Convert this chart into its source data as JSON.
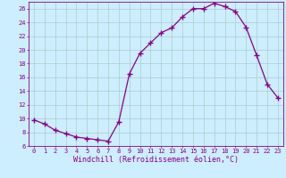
{
  "x": [
    0,
    1,
    2,
    3,
    4,
    5,
    6,
    7,
    8,
    9,
    10,
    11,
    12,
    13,
    14,
    15,
    16,
    17,
    18,
    19,
    20,
    21,
    22,
    23
  ],
  "y": [
    9.8,
    9.2,
    8.3,
    7.8,
    7.3,
    7.1,
    6.9,
    6.7,
    9.5,
    16.5,
    19.5,
    21.0,
    22.5,
    23.2,
    24.8,
    26.0,
    26.0,
    26.8,
    26.3,
    25.6,
    23.3,
    19.2,
    15.0,
    13.0
  ],
  "line_color": "#880088",
  "marker": "+",
  "marker_size": 4,
  "marker_lw": 1.0,
  "bg_color": "#cceeff",
  "grid_color": "#aacccc",
  "xlabel": "Windchill (Refroidissement éolien,°C)",
  "ylim": [
    6,
    27
  ],
  "xlim_left": -0.5,
  "xlim_right": 23.5,
  "yticks": [
    6,
    8,
    10,
    12,
    14,
    16,
    18,
    20,
    22,
    24,
    26
  ],
  "xticks": [
    0,
    1,
    2,
    3,
    4,
    5,
    6,
    7,
    8,
    9,
    10,
    11,
    12,
    13,
    14,
    15,
    16,
    17,
    18,
    19,
    20,
    21,
    22,
    23
  ],
  "tick_color": "#880088",
  "tick_fontsize": 5.0,
  "xlabel_fontsize": 6.0
}
